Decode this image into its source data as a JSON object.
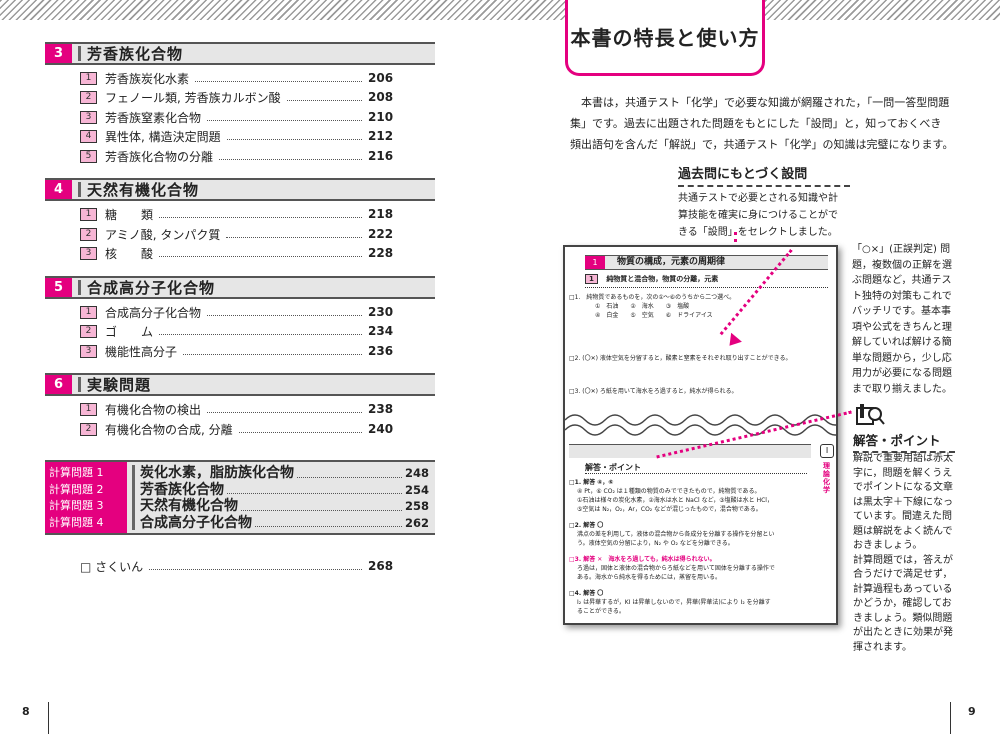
{
  "left_page": {
    "page_number": "8",
    "sections": [
      {
        "num": "3",
        "title": "芳香族化合物",
        "items": [
          {
            "n": "1",
            "label": "芳香族炭化水素",
            "page": "206"
          },
          {
            "n": "2",
            "label": "フェノール類, 芳香族カルボン酸",
            "page": "208"
          },
          {
            "n": "3",
            "label": "芳香族窒素化合物",
            "page": "210"
          },
          {
            "n": "4",
            "label": "異性体, 構造決定問題",
            "page": "212"
          },
          {
            "n": "5",
            "label": "芳香族化合物の分離",
            "page": "216"
          }
        ]
      },
      {
        "num": "4",
        "title": "天然有機化合物",
        "items": [
          {
            "n": "1",
            "label": "糖　　類",
            "page": "218"
          },
          {
            "n": "2",
            "label": "アミノ酸, タンパク質",
            "page": "222"
          },
          {
            "n": "3",
            "label": "核　　酸",
            "page": "228"
          }
        ]
      },
      {
        "num": "5",
        "title": "合成高分子化合物",
        "items": [
          {
            "n": "1",
            "label": "合成高分子化合物",
            "page": "230"
          },
          {
            "n": "2",
            "label": "ゴ　　ム",
            "page": "234"
          },
          {
            "n": "3",
            "label": "機能性高分子",
            "page": "236"
          }
        ]
      },
      {
        "num": "6",
        "title": "実験問題",
        "items": [
          {
            "n": "1",
            "label": "有機化合物の検出",
            "page": "238"
          },
          {
            "n": "2",
            "label": "有機化合物の合成, 分離",
            "page": "240"
          }
        ]
      }
    ],
    "calc": [
      {
        "label": "計算問題 1",
        "title": "炭化水素，脂肪族化合物",
        "page": "248"
      },
      {
        "label": "計算問題 2",
        "title": "芳香族化合物",
        "page": "254"
      },
      {
        "label": "計算問題 3",
        "title": "天然有機化合物",
        "page": "258"
      },
      {
        "label": "計算問題 4",
        "title": "合成高分子化合物",
        "page": "262"
      }
    ],
    "index": {
      "label": "□ さくいん",
      "page": "268"
    }
  },
  "right_page": {
    "page_number": "9",
    "title": "本書の特長と使い方",
    "intro": [
      "本書は，共通テスト「化学」で必要な知識が網羅された，「一問一答型問題",
      "集」です。過去に出題された問題をもとにした「設問」と，知っておくべき",
      "頻出語句を含んだ「解説」で，共通テスト「化学」の知識は完璧になります。"
    ],
    "callout_questions": {
      "title": "過去問にもとづく設問",
      "lines": [
        "共通テストで必要とされる知識や計",
        "算技能を確実に身につけることがで",
        "きる「設問」をセレクトしました。"
      ]
    },
    "callout_ox": [
      "「○×」(正誤判定) 問",
      "題，複数個の正解を選",
      "ぶ問題など，共通テス",
      "ト独特の対策もこれで",
      "バッチリです。基本事",
      "項や公式をきちんと理",
      "解していれば解ける簡",
      "単な問題から，少し応",
      "用力が必要になる問題",
      "まで取り揃えました。"
    ],
    "callout_answer": {
      "title": "解答・ポイント",
      "lines": [
        "解説で重要用語は赤太",
        "字に，問題を解くうえ",
        "でポイントになる文章",
        "は黒太字＋下線になっ",
        "ています。間違えた問",
        "題は解説をよく読んで",
        "おきましょう。",
        "計算問題では，答えが",
        "合うだけで満足せず，",
        "計算過程もあっている",
        "かどうか，確認してお",
        "きましょう。類似問題",
        "が出たときに効果が発",
        "揮されます。"
      ]
    },
    "sample": {
      "chapter_num": "1",
      "chapter_title": "物質の構成，元素の周期律",
      "section_num": "1",
      "section_title": "純物質と混合物，物質の分離，元素",
      "q1": "□1.　純物質であるものを，次の①～⑥のうちから二つ選べ。",
      "q1_opts": [
        "①　石油　　②　海水　　③　塩酸",
        "④　白金　　⑤　空気　　⑥　ドライアイス"
      ],
      "q2": "□2. (〇✕) 液体空気を分留すると，酸素と窒素をそれぞれ取り出すことができる。",
      "q3": "□3. (〇✕) ろ紙を用いて海水をろ過すると，純水が得られる。",
      "answer_head": "解答・ポイント",
      "side_tab": "理論化学",
      "side_tab_num": "I",
      "a1": "□1. 解答 ④，⑥",
      "a1_text": [
        "④ Pt，⑥ CO₂ は１種類の物質のみでできたもので，純物質である。",
        "①石油は様々の炭化水素，②海水は水と NaCl など，③塩酸は水と HCl，",
        "⑤空気は N₂，O₂，Ar，CO₂ などが混じったもので，混合物である。"
      ],
      "a2": "□2. 解答 〇",
      "a2_text": [
        "沸点の差を利用して，液体の混合物から各成分を分離する操作を分留とい",
        "う。液体空気の分留により，N₂ や O₂ などを分離できる。"
      ],
      "a3": "□3. 解答 ✕　海水をろ過しても，純水は得られない。",
      "a3_text": [
        "ろ過は，固体と液体の混合物からろ紙などを用いて固体を分離する操作で",
        "ある。海水から純水を得るためには，蒸留を用いる。"
      ],
      "a4": "□4. 解答 〇",
      "a4_text": [
        "I₂ は昇華するが，KI は昇華しないので，昇華(昇華法)により I₂ を分離す",
        "ることができる。"
      ]
    }
  },
  "colors": {
    "accent": "#e4007f",
    "header_gray": "#e6e6e6"
  }
}
